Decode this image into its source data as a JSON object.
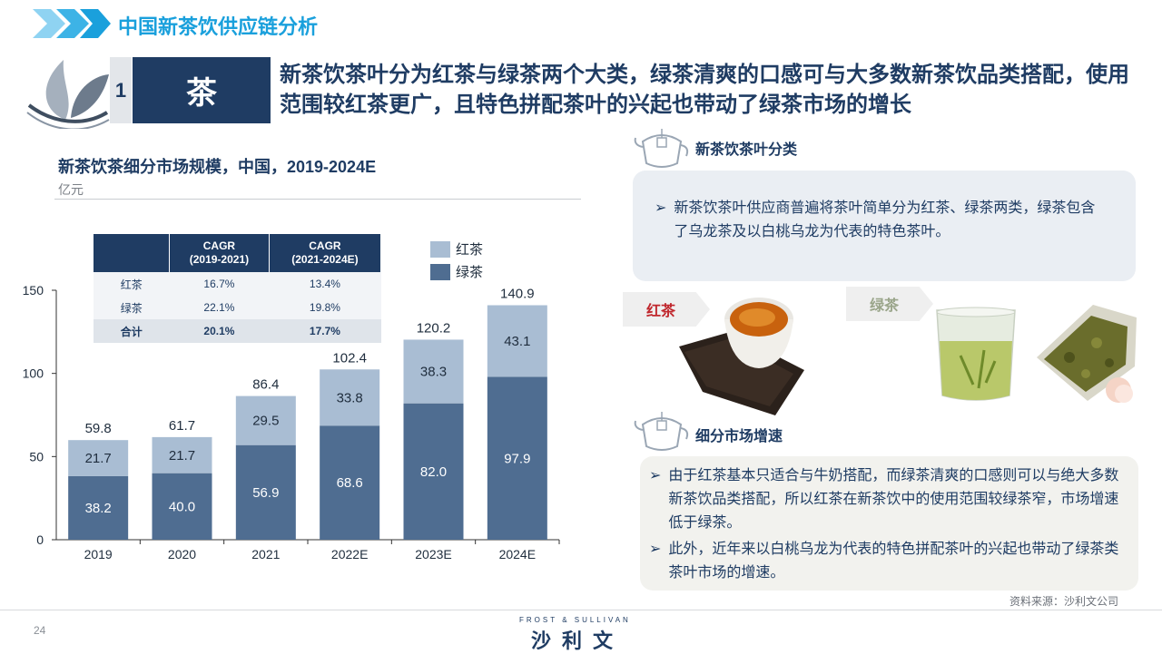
{
  "header": {
    "title": "中国新茶饮供应链分析",
    "section_number": "1",
    "section_label": "茶",
    "headline": "新茶饮茶叶分为红茶与绿茶两个大类，绿茶清爽的口感可与大多数新茶饮品类搭配，使用范围较红茶更广，且特色拼配茶叶的兴起也带动了绿茶市场的增长"
  },
  "chart_data": {
    "type": "bar",
    "stacked": true,
    "title": "新茶饮茶细分市场规模，中国，2019-2024E",
    "unit": "亿元",
    "categories": [
      "2019",
      "2020",
      "2021",
      "2022E",
      "2023E",
      "2024E"
    ],
    "series": [
      {
        "name": "绿茶",
        "values": [
          38.2,
          40.0,
          56.9,
          68.6,
          82.0,
          97.9
        ],
        "color": "#4f6d91"
      },
      {
        "name": "红茶",
        "values": [
          21.7,
          21.7,
          29.5,
          33.8,
          38.3,
          43.1
        ],
        "color": "#a9bdd3"
      }
    ],
    "totals": [
      59.8,
      61.7,
      86.4,
      102.4,
      120.2,
      140.9
    ],
    "yticks": [
      0,
      50,
      100,
      150
    ],
    "ylim": [
      0,
      150
    ],
    "legend_position": "top-right",
    "cagr_table": {
      "headers": [
        [
          "CAGR",
          "(2019-2021)"
        ],
        [
          "CAGR",
          "(2021-2024E)"
        ]
      ],
      "rows": [
        {
          "label": "红茶",
          "a": "16.7%",
          "b": "13.4%"
        },
        {
          "label": "绿茶",
          "a": "22.1%",
          "b": "19.8%"
        },
        {
          "label": "合计",
          "a": "20.1%",
          "b": "17.7%"
        }
      ]
    }
  },
  "right": {
    "section1": {
      "title": "新茶饮茶叶分类",
      "bullets": [
        "新茶饮茶叶供应商普遍将茶叶简单分为红茶、绿茶两类，绿茶包含了乌龙茶及以白桃乌龙为代表的特色茶叶。"
      ]
    },
    "tags": {
      "red": "红茶",
      "green": "绿茶"
    },
    "section2": {
      "title": "细分市场增速",
      "bullets": [
        "由于红茶基本只适合与牛奶搭配，而绿茶清爽的口感则可以与绝大多数新茶饮品类搭配，所以红茶在新茶饮中的使用范围较绿茶窄，市场增速低于绿茶。",
        "此外，近年来以白桃乌龙为代表的特色拼配茶叶的兴起也带动了绿茶类茶叶市场的增速。"
      ]
    }
  },
  "footer": {
    "source": "资料来源：沙利文公司",
    "page": "24",
    "brand_en": "FROST & SULLIVAN",
    "brand_cn": "沙利文"
  },
  "colors": {
    "accent": "#1aa0dc",
    "navy": "#1f3c63",
    "red_tag": "#c0272d"
  }
}
